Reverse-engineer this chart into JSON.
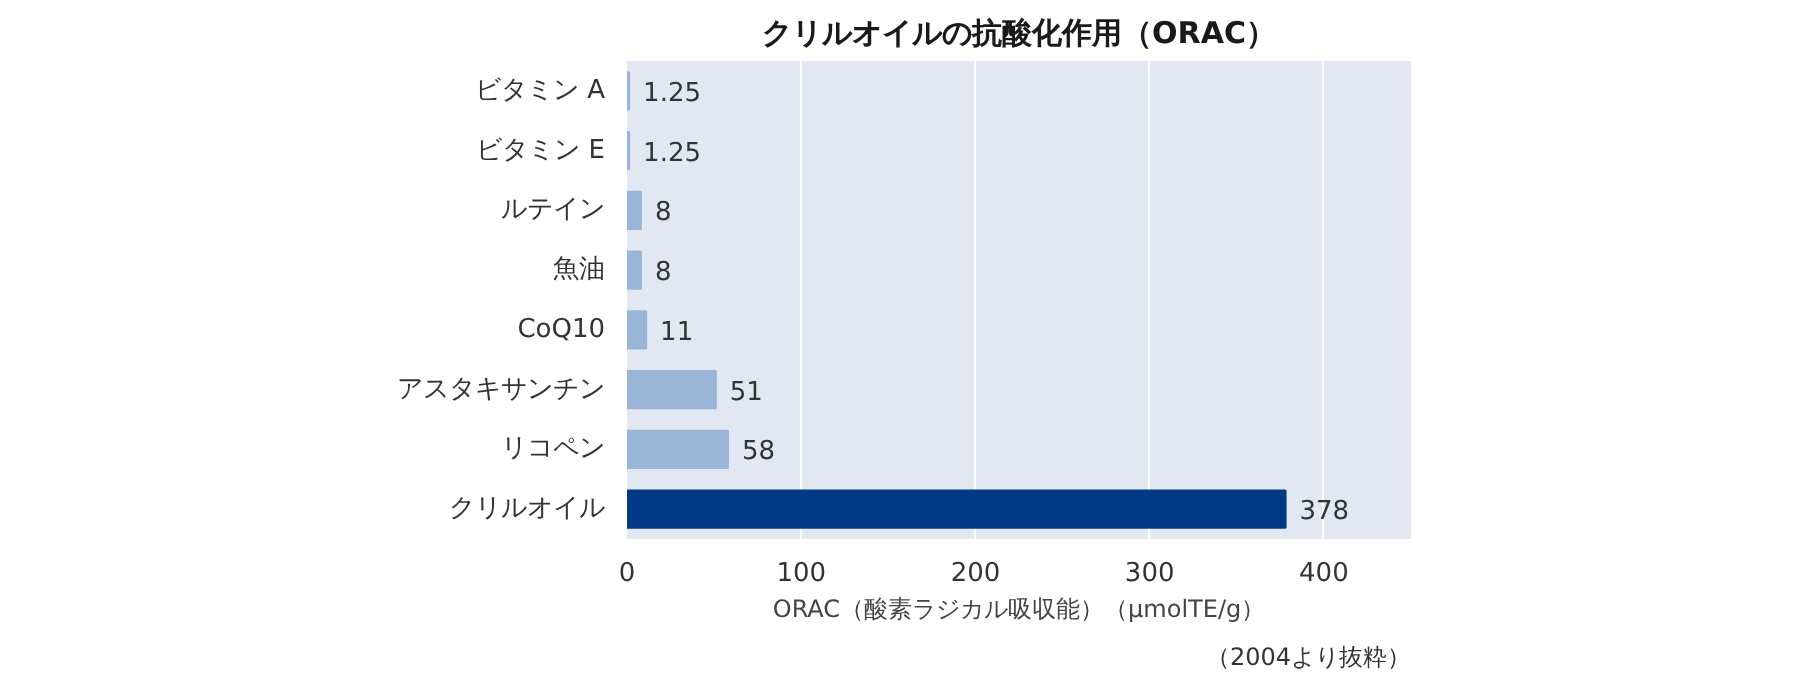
{
  "chart_data": {
    "type": "bar",
    "orientation": "horizontal",
    "title": "クリルオイルの抗酸化作用（ORAC）",
    "xlabel": "ORAC（酸素ラジカル吸収能）（μmolTE/g）",
    "categories": [
      "ビタミン A",
      "ビタミン E",
      "ルテイン",
      "魚油",
      "CoQ10",
      "アスタキサンチン",
      "リコペン",
      "クリルオイル"
    ],
    "values": [
      1.25,
      1.25,
      8,
      8,
      11,
      51,
      58,
      378
    ],
    "colors": [
      "#9ab5d8",
      "#9ab5d8",
      "#9ab5d8",
      "#9ab5d8",
      "#9ab5d8",
      "#9ab5d8",
      "#9ab5d8",
      "#003a87"
    ],
    "data_labels": true,
    "xlim": [
      0,
      450
    ],
    "xticks": [
      0,
      100,
      200,
      300,
      400
    ],
    "grid": "x",
    "annotations": [
      "（2004より抜粋）"
    ]
  }
}
